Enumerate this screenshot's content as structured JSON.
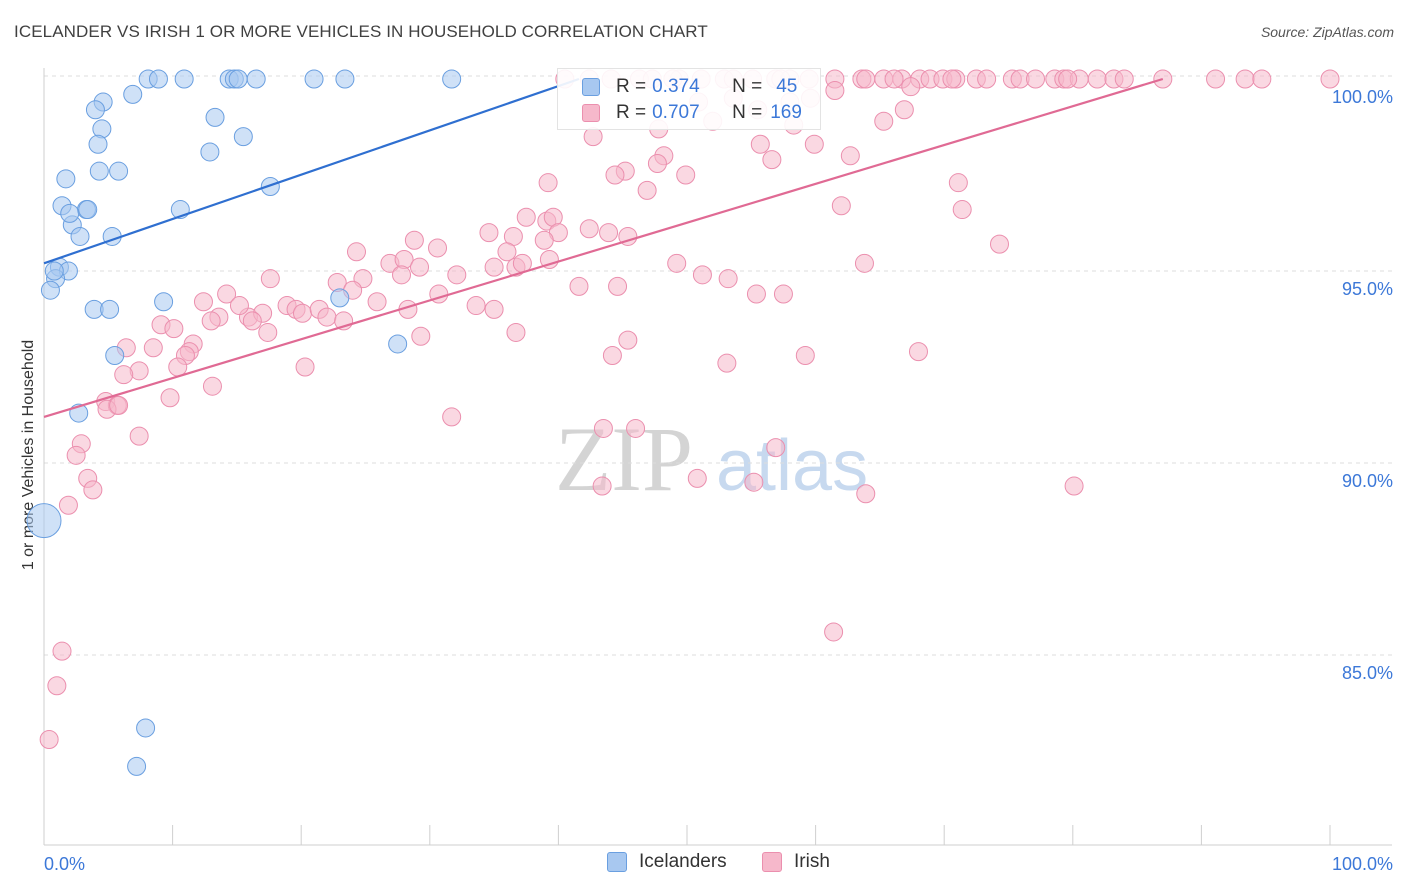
{
  "title": "ICELANDER VS IRISH 1 OR MORE VEHICLES IN HOUSEHOLD CORRELATION CHART",
  "source": "Source: ZipAtlas.com",
  "watermark": {
    "zip": "ZIP",
    "atlas": "atlas"
  },
  "legend": {
    "r_label": "R =",
    "n_label": "N =",
    "icelanders": {
      "r": "0.374",
      "n": "45"
    },
    "irish": {
      "r": "0.707",
      "n": "169"
    }
  },
  "bottom_legend": {
    "icelanders": "Icelanders",
    "irish": "Irish"
  },
  "colors": {
    "icelanders_fill": "#a8c8f0",
    "icelanders_stroke": "#6a9fe0",
    "icelanders_line": "#2f6fd0",
    "irish_fill": "#f6b8cb",
    "irish_stroke": "#eb8fae",
    "irish_line": "#e06a94",
    "tick_label": "#3c78d8",
    "grid": "#dddddd"
  },
  "chart_data": {
    "type": "scatter",
    "title": "ICELANDER VS IRISH 1 OR MORE VEHICLES IN HOUSEHOLD CORRELATION CHART",
    "xlabel": "",
    "ylabel": "1 or more Vehicles in Household",
    "xlim": [
      0,
      100
    ],
    "ylim": [
      80.6,
      100.7
    ],
    "x_tick_labels": [
      "0.0%",
      "100.0%"
    ],
    "y_ticks": [
      85,
      90,
      95,
      100
    ],
    "y_tick_labels": [
      "85.0%",
      "90.0%",
      "95.0%",
      "100.0%"
    ],
    "grid": true,
    "legend_position": "top-center",
    "series": [
      {
        "name": "Icelanders",
        "R": 0.374,
        "N": 45,
        "trend": {
          "x": [
            0,
            41.6
          ],
          "y": [
            95.2,
            100.0
          ]
        },
        "points": [
          [
            8.1,
            100.0
          ],
          [
            8.9,
            100.0
          ],
          [
            10.9,
            100.0
          ],
          [
            14.4,
            100.0
          ],
          [
            14.8,
            100.0
          ],
          [
            15.1,
            100.0
          ],
          [
            16.5,
            100.0
          ],
          [
            21.0,
            100.0
          ],
          [
            23.4,
            100.0
          ],
          [
            31.7,
            100.0
          ],
          [
            4.6,
            99.4
          ],
          [
            4.0,
            99.2
          ],
          [
            13.3,
            99.0
          ],
          [
            4.5,
            98.7
          ],
          [
            4.2,
            98.3
          ],
          [
            15.5,
            98.5
          ],
          [
            12.9,
            98.1
          ],
          [
            4.3,
            97.6
          ],
          [
            5.8,
            97.6
          ],
          [
            1.7,
            97.4
          ],
          [
            17.6,
            97.2
          ],
          [
            1.4,
            96.7
          ],
          [
            3.3,
            96.6
          ],
          [
            3.4,
            96.6
          ],
          [
            10.6,
            96.6
          ],
          [
            2.2,
            96.2
          ],
          [
            2.8,
            95.9
          ],
          [
            5.3,
            95.9
          ],
          [
            1.2,
            95.1
          ],
          [
            1.9,
            95.0
          ],
          [
            0.9,
            94.8
          ],
          [
            0.5,
            94.5
          ],
          [
            9.3,
            94.2
          ],
          [
            23.0,
            94.3
          ],
          [
            3.9,
            94.0
          ],
          [
            5.1,
            94.0
          ],
          [
            27.5,
            93.1
          ],
          [
            5.5,
            92.8
          ],
          [
            2.7,
            91.3
          ],
          [
            0.0,
            88.5
          ],
          [
            7.9,
            83.1
          ],
          [
            7.2,
            82.1
          ],
          [
            0.8,
            95.0
          ],
          [
            6.9,
            99.6
          ],
          [
            2.0,
            96.5
          ]
        ]
      },
      {
        "name": "Irish",
        "R": 0.707,
        "N": 169,
        "trend": {
          "x": [
            0,
            87.0
          ],
          "y": [
            91.2,
            100.0
          ]
        },
        "points": [
          [
            42.4,
            100.0
          ],
          [
            44.1,
            100.0
          ],
          [
            46.3,
            100.0
          ],
          [
            47.3,
            100.0
          ],
          [
            49.4,
            100.0
          ],
          [
            51.1,
            100.0
          ],
          [
            52.9,
            100.0
          ],
          [
            53.6,
            100.0
          ],
          [
            55.1,
            100.0
          ],
          [
            56.9,
            100.0
          ],
          [
            58.0,
            100.0
          ],
          [
            59.5,
            100.0
          ],
          [
            61.5,
            100.0
          ],
          [
            63.6,
            100.0
          ],
          [
            65.3,
            100.0
          ],
          [
            66.7,
            100.0
          ],
          [
            68.1,
            100.0
          ],
          [
            68.9,
            100.0
          ],
          [
            69.9,
            100.0
          ],
          [
            70.9,
            100.0
          ],
          [
            72.5,
            100.0
          ],
          [
            73.3,
            100.0
          ],
          [
            75.3,
            100.0
          ],
          [
            75.9,
            100.0
          ],
          [
            77.1,
            100.0
          ],
          [
            78.6,
            100.0
          ],
          [
            79.3,
            100.0
          ],
          [
            80.5,
            100.0
          ],
          [
            81.9,
            100.0
          ],
          [
            83.2,
            100.0
          ],
          [
            84.0,
            100.0
          ],
          [
            87.0,
            100.0
          ],
          [
            91.1,
            100.0
          ],
          [
            93.4,
            100.0
          ],
          [
            94.7,
            100.0
          ],
          [
            100.0,
            100.0
          ],
          [
            67.4,
            99.8
          ],
          [
            61.5,
            99.7
          ],
          [
            53.6,
            99.5
          ],
          [
            59.6,
            99.5
          ],
          [
            50.9,
            99.4
          ],
          [
            58.0,
            99.4
          ],
          [
            55.5,
            99.2
          ],
          [
            66.9,
            99.2
          ],
          [
            52.0,
            98.9
          ],
          [
            65.3,
            98.9
          ],
          [
            58.3,
            98.8
          ],
          [
            47.8,
            98.7
          ],
          [
            42.7,
            98.5
          ],
          [
            55.7,
            98.3
          ],
          [
            59.9,
            98.3
          ],
          [
            48.2,
            98.0
          ],
          [
            62.7,
            98.0
          ],
          [
            56.6,
            97.9
          ],
          [
            47.7,
            97.8
          ],
          [
            45.2,
            97.6
          ],
          [
            44.4,
            97.5
          ],
          [
            49.9,
            97.5
          ],
          [
            39.2,
            97.3
          ],
          [
            71.1,
            97.3
          ],
          [
            46.9,
            97.1
          ],
          [
            62.0,
            96.7
          ],
          [
            71.4,
            96.6
          ],
          [
            37.5,
            96.4
          ],
          [
            39.1,
            96.3
          ],
          [
            39.6,
            96.4
          ],
          [
            40.0,
            96.0
          ],
          [
            42.4,
            96.1
          ],
          [
            43.9,
            96.0
          ],
          [
            45.4,
            95.9
          ],
          [
            34.6,
            96.0
          ],
          [
            36.5,
            95.9
          ],
          [
            38.9,
            95.8
          ],
          [
            28.8,
            95.8
          ],
          [
            30.6,
            95.6
          ],
          [
            36.0,
            95.5
          ],
          [
            24.3,
            95.5
          ],
          [
            26.9,
            95.2
          ],
          [
            28.0,
            95.3
          ],
          [
            29.2,
            95.1
          ],
          [
            35.0,
            95.1
          ],
          [
            36.7,
            95.1
          ],
          [
            37.2,
            95.2
          ],
          [
            39.3,
            95.3
          ],
          [
            49.2,
            95.2
          ],
          [
            63.8,
            95.2
          ],
          [
            74.3,
            95.7
          ],
          [
            51.2,
            94.9
          ],
          [
            41.6,
            94.6
          ],
          [
            44.6,
            94.6
          ],
          [
            22.8,
            94.7
          ],
          [
            24.8,
            94.8
          ],
          [
            27.8,
            94.9
          ],
          [
            32.1,
            94.9
          ],
          [
            17.6,
            94.8
          ],
          [
            24.0,
            94.5
          ],
          [
            25.9,
            94.2
          ],
          [
            28.3,
            94.0
          ],
          [
            30.7,
            94.4
          ],
          [
            33.6,
            94.1
          ],
          [
            35.0,
            94.0
          ],
          [
            53.2,
            94.8
          ],
          [
            55.4,
            94.4
          ],
          [
            57.5,
            94.4
          ],
          [
            12.4,
            94.2
          ],
          [
            14.2,
            94.4
          ],
          [
            15.9,
            93.8
          ],
          [
            17.0,
            93.9
          ],
          [
            18.9,
            94.1
          ],
          [
            19.6,
            94.0
          ],
          [
            20.1,
            93.9
          ],
          [
            21.4,
            94.0
          ],
          [
            22.0,
            93.8
          ],
          [
            23.3,
            93.7
          ],
          [
            13.6,
            93.8
          ],
          [
            15.2,
            94.1
          ],
          [
            16.2,
            93.7
          ],
          [
            9.1,
            93.6
          ],
          [
            10.1,
            93.5
          ],
          [
            13.0,
            93.7
          ],
          [
            17.4,
            93.4
          ],
          [
            29.3,
            93.3
          ],
          [
            36.7,
            93.4
          ],
          [
            11.6,
            93.1
          ],
          [
            11.3,
            92.9
          ],
          [
            11.0,
            92.8
          ],
          [
            8.5,
            93.0
          ],
          [
            6.4,
            93.0
          ],
          [
            10.4,
            92.5
          ],
          [
            7.4,
            92.4
          ],
          [
            6.2,
            92.3
          ],
          [
            13.1,
            92.0
          ],
          [
            9.8,
            91.7
          ],
          [
            4.8,
            91.6
          ],
          [
            5.7,
            91.5
          ],
          [
            4.9,
            91.4
          ],
          [
            7.4,
            90.7
          ],
          [
            2.9,
            90.5
          ],
          [
            2.5,
            90.2
          ],
          [
            31.7,
            91.2
          ],
          [
            46.0,
            90.9
          ],
          [
            43.5,
            90.9
          ],
          [
            68.0,
            92.9
          ],
          [
            53.1,
            92.6
          ],
          [
            44.2,
            92.8
          ],
          [
            59.2,
            92.8
          ],
          [
            45.4,
            93.2
          ],
          [
            20.3,
            92.5
          ],
          [
            5.8,
            91.5
          ],
          [
            3.4,
            89.6
          ],
          [
            3.8,
            89.3
          ],
          [
            1.9,
            88.9
          ],
          [
            43.4,
            89.4
          ],
          [
            55.2,
            89.5
          ],
          [
            50.8,
            89.6
          ],
          [
            56.9,
            90.4
          ],
          [
            63.9,
            89.2
          ],
          [
            80.1,
            89.4
          ],
          [
            61.4,
            85.6
          ],
          [
            1.4,
            85.1
          ],
          [
            1.0,
            84.2
          ],
          [
            0.4,
            82.8
          ],
          [
            66.1,
            100.0
          ],
          [
            63.9,
            100.0
          ],
          [
            40.5,
            100.0
          ],
          [
            48.9,
            100.0
          ],
          [
            57.3,
            100.0
          ],
          [
            79.6,
            100.0
          ],
          [
            70.6,
            100.0
          ]
        ]
      }
    ]
  }
}
